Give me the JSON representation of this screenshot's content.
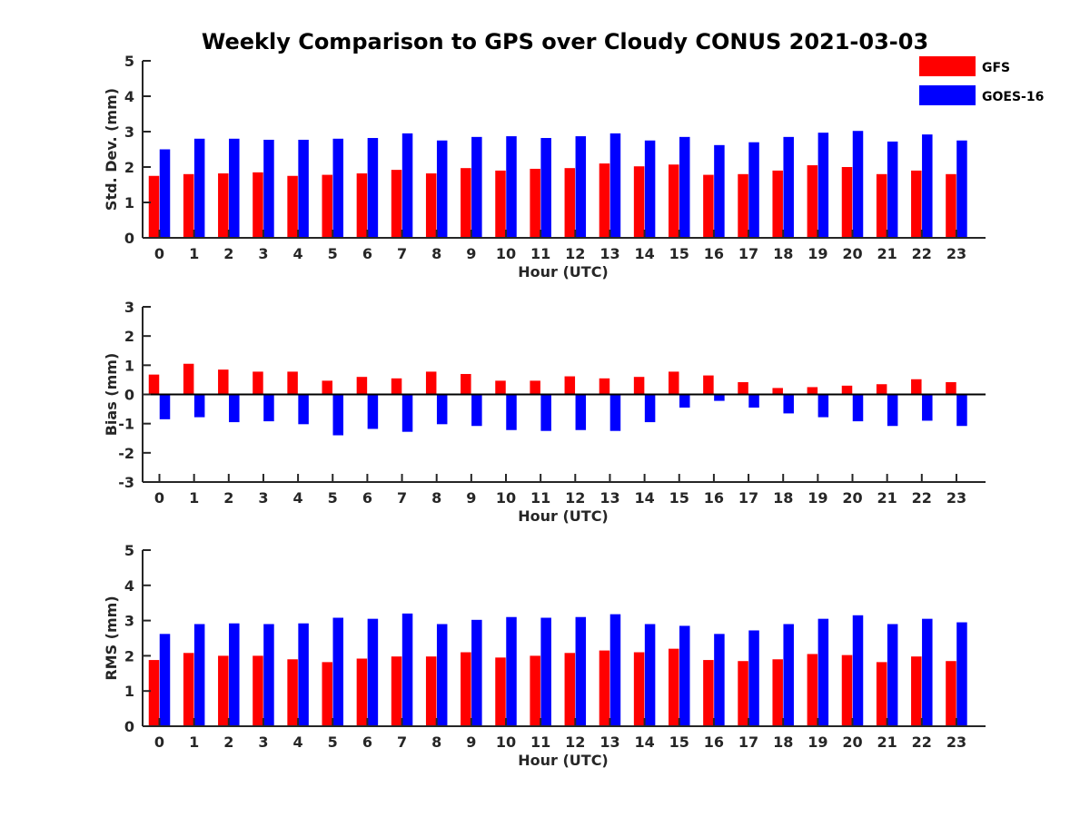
{
  "figure": {
    "title": "Weekly Comparison to GPS over Cloudy CONUS 2021-03-03"
  },
  "legend": {
    "placement": "top-right",
    "entries": [
      {
        "label": "GFS",
        "color": "#ff0000"
      },
      {
        "label": "GOES-16",
        "color": "#0000ff"
      }
    ]
  },
  "chart_data": [
    {
      "type": "bar",
      "title": "",
      "xlabel": "Hour (UTC)",
      "ylabel": "Std. Dev. (mm)",
      "ylim": [
        0,
        5
      ],
      "yticks": [
        0,
        1,
        2,
        3,
        4,
        5
      ],
      "grid": false,
      "categories": [
        "0",
        "1",
        "2",
        "3",
        "4",
        "5",
        "6",
        "7",
        "8",
        "9",
        "10",
        "11",
        "12",
        "13",
        "14",
        "15",
        "16",
        "17",
        "18",
        "19",
        "20",
        "21",
        "22",
        "23"
      ],
      "series": [
        {
          "name": "GFS",
          "color": "#ff0000",
          "values": [
            1.75,
            1.8,
            1.82,
            1.85,
            1.75,
            1.78,
            1.82,
            1.92,
            1.82,
            1.97,
            1.9,
            1.95,
            1.97,
            2.1,
            2.02,
            2.07,
            1.78,
            1.8,
            1.9,
            2.05,
            2.0,
            1.8,
            1.9,
            1.8
          ]
        },
        {
          "name": "GOES-16",
          "color": "#0000ff",
          "values": [
            2.5,
            2.8,
            2.8,
            2.77,
            2.77,
            2.8,
            2.82,
            2.95,
            2.75,
            2.85,
            2.87,
            2.82,
            2.87,
            2.95,
            2.75,
            2.85,
            2.62,
            2.7,
            2.85,
            2.97,
            3.02,
            2.72,
            2.92,
            2.75
          ]
        }
      ]
    },
    {
      "type": "bar",
      "title": "",
      "xlabel": "Hour (UTC)",
      "ylabel": "Bias (mm)",
      "ylim": [
        -3,
        3
      ],
      "yticks": [
        -3,
        -2,
        -1,
        0,
        1,
        2,
        3
      ],
      "grid": false,
      "zero_line": true,
      "categories": [
        "0",
        "1",
        "2",
        "3",
        "4",
        "5",
        "6",
        "7",
        "8",
        "9",
        "10",
        "11",
        "12",
        "13",
        "14",
        "15",
        "16",
        "17",
        "18",
        "19",
        "20",
        "21",
        "22",
        "23"
      ],
      "series": [
        {
          "name": "GFS",
          "color": "#ff0000",
          "values": [
            0.68,
            1.05,
            0.85,
            0.78,
            0.78,
            0.47,
            0.6,
            0.55,
            0.78,
            0.7,
            0.47,
            0.47,
            0.62,
            0.55,
            0.6,
            0.78,
            0.65,
            0.42,
            0.22,
            0.25,
            0.3,
            0.35,
            0.52,
            0.42
          ]
        },
        {
          "name": "GOES-16",
          "color": "#0000ff",
          "values": [
            -0.85,
            -0.78,
            -0.95,
            -0.92,
            -1.02,
            -1.4,
            -1.18,
            -1.28,
            -1.02,
            -1.08,
            -1.22,
            -1.25,
            -1.22,
            -1.25,
            -0.95,
            -0.45,
            -0.22,
            -0.45,
            -0.65,
            -0.78,
            -0.92,
            -1.08,
            -0.9,
            -1.08
          ]
        }
      ]
    },
    {
      "type": "bar",
      "title": "",
      "xlabel": "Hour (UTC)",
      "ylabel": "RMS (mm)",
      "ylim": [
        0,
        5
      ],
      "yticks": [
        0,
        1,
        2,
        3,
        4,
        5
      ],
      "grid": false,
      "categories": [
        "0",
        "1",
        "2",
        "3",
        "4",
        "5",
        "6",
        "7",
        "8",
        "9",
        "10",
        "11",
        "12",
        "13",
        "14",
        "15",
        "16",
        "17",
        "18",
        "19",
        "20",
        "21",
        "22",
        "23"
      ],
      "series": [
        {
          "name": "GFS",
          "color": "#ff0000",
          "values": [
            1.88,
            2.08,
            2.0,
            2.0,
            1.9,
            1.82,
            1.92,
            1.98,
            1.98,
            2.1,
            1.95,
            2.0,
            2.08,
            2.15,
            2.1,
            2.2,
            1.88,
            1.85,
            1.9,
            2.05,
            2.02,
            1.82,
            1.98,
            1.85
          ]
        },
        {
          "name": "GOES-16",
          "color": "#0000ff",
          "values": [
            2.62,
            2.9,
            2.92,
            2.9,
            2.92,
            3.08,
            3.05,
            3.2,
            2.9,
            3.02,
            3.1,
            3.08,
            3.1,
            3.18,
            2.9,
            2.85,
            2.62,
            2.72,
            2.9,
            3.05,
            3.15,
            2.9,
            3.05,
            2.95
          ]
        }
      ]
    }
  ]
}
